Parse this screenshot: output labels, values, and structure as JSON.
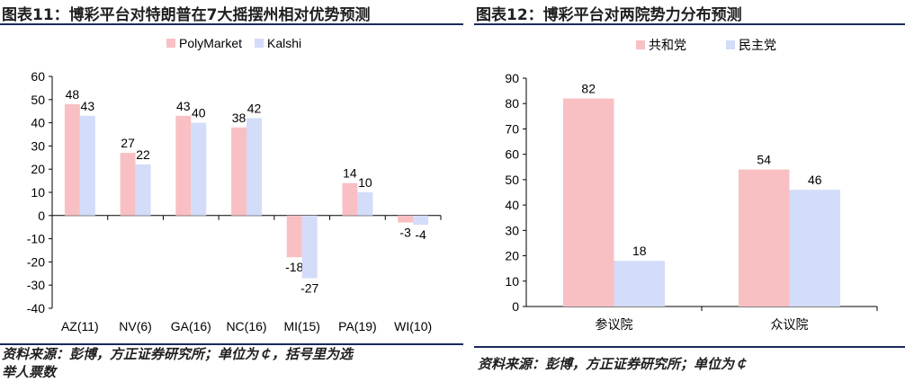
{
  "left": {
    "title": "图表11：博彩平台对特朗普在7大摇摆州相对优势预测",
    "source_line1": "资料来源：彭博，方正证券研究所；单位为￠，括号里为选",
    "source_line2": "举人票数"
  },
  "right": {
    "title": "图表12：博彩平台对两院势力分布预测",
    "source": "资料来源：彭博，方正证券研究所；单位为￠"
  },
  "colors": {
    "series1": "#f9c0c3",
    "series2": "#d3dcf8",
    "rule": "#1a2a5a"
  },
  "chart_data": [
    {
      "type": "bar",
      "categories": [
        "AZ(11)",
        "NV(6)",
        "GA(16)",
        "NC(16)",
        "MI(15)",
        "PA(19)",
        "WI(10)"
      ],
      "series": [
        {
          "name": "PolyMarket",
          "values": [
            48,
            27,
            43,
            38,
            -18,
            14,
            -3
          ]
        },
        {
          "name": "Kalshi",
          "values": [
            43,
            22,
            40,
            42,
            -27,
            10,
            -4
          ]
        }
      ],
      "ylim": [
        -40,
        60
      ],
      "yticks": [
        -40,
        -30,
        -20,
        -10,
        0,
        10,
        20,
        30,
        40,
        50,
        60
      ],
      "legend": "top"
    },
    {
      "type": "bar",
      "categories": [
        "参议院",
        "众议院"
      ],
      "series": [
        {
          "name": "共和党",
          "values": [
            82,
            54
          ]
        },
        {
          "name": "民主党",
          "values": [
            18,
            46
          ]
        }
      ],
      "ylim": [
        0,
        90
      ],
      "yticks": [
        0,
        10,
        20,
        30,
        40,
        50,
        60,
        70,
        80,
        90
      ],
      "legend": "top"
    }
  ]
}
